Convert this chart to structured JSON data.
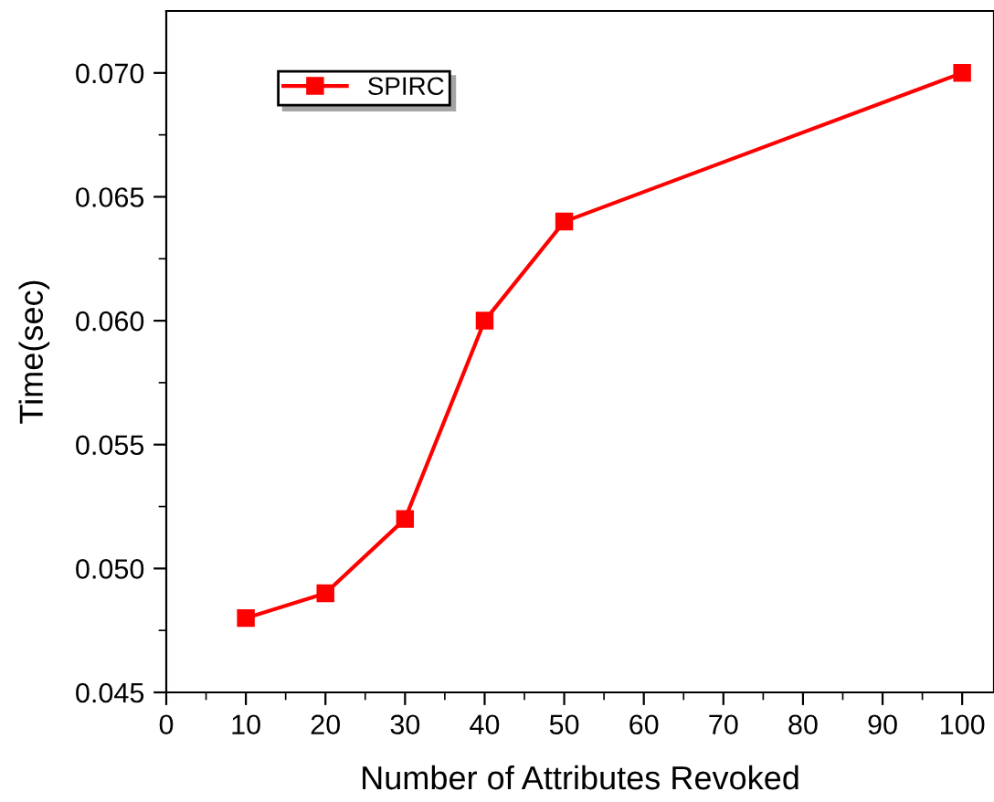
{
  "chart_data": {
    "type": "line",
    "xlabel": "Number of Attributes Revoked",
    "ylabel": "Time(sec)",
    "x": [
      10,
      20,
      30,
      40,
      50,
      100
    ],
    "series": [
      {
        "name": "SPIRC",
        "color": "#ff0000",
        "values": [
          0.048,
          0.049,
          0.052,
          0.06,
          0.064,
          0.07
        ]
      }
    ],
    "xlim": [
      0,
      104
    ],
    "xticks": [
      0,
      10,
      20,
      30,
      40,
      50,
      60,
      70,
      80,
      90,
      100
    ],
    "ylim": [
      0.045,
      0.0725
    ],
    "yticks": [
      {
        "value": 0.045,
        "label": "0.045"
      },
      {
        "value": 0.05,
        "label": "0.050"
      },
      {
        "value": 0.055,
        "label": "0.055"
      },
      {
        "value": 0.06,
        "label": "0.060"
      },
      {
        "value": 0.065,
        "label": "0.065"
      },
      {
        "value": 0.07,
        "label": "0.070"
      }
    ],
    "marker": "square",
    "line_style": "solid",
    "legend": "top left",
    "grid": false
  }
}
